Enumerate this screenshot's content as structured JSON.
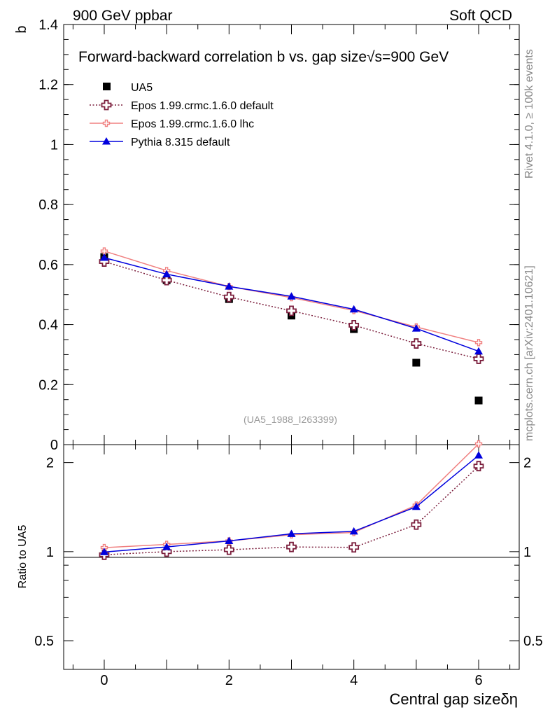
{
  "header": {
    "left": "900 GeV ppbar",
    "right": "Soft QCD"
  },
  "side_labels": {
    "rivet": "Rivet 4.1.0, ≥ 100k events",
    "mcplots": "mcplots.cern.ch [arXiv:2401.10621]"
  },
  "colors": {
    "ua5": "#000000",
    "epos_default": "#7b1e3c",
    "epos_lhc": "#f08080",
    "pythia": "#0000dd"
  },
  "chart_data": [
    {
      "type": "line",
      "title": "Forward-backward correlation b  vs. gap size",
      "title_suffix": "√s=900 GeV",
      "ylabel": "b",
      "xlabel": "Central gap sizeδη",
      "xlim": [
        -0.65,
        6.65
      ],
      "ylim": [
        0,
        1.4
      ],
      "yticks": [
        0,
        0.2,
        0.4,
        0.6,
        0.8,
        1,
        1.2,
        1.4
      ],
      "ytick_labels": [
        "0",
        "0.2",
        "0.4",
        "0.6",
        "0.8",
        "1",
        "1.2",
        "1.4"
      ],
      "xticks": [
        0,
        2,
        4,
        6
      ],
      "xtick_labels": [
        "0",
        "2",
        "4",
        "6"
      ],
      "watermark": "(UA5_1988_I263399)",
      "x": [
        0,
        1,
        2,
        3,
        4,
        5,
        6
      ],
      "series": [
        {
          "name": "UA5",
          "style": "data",
          "values": [
            0.625,
            0.548,
            0.485,
            0.43,
            0.385,
            0.273,
            0.147
          ]
        },
        {
          "name": "Epos 1.99.crmc.1.6.0 default",
          "style": "dotted-cross",
          "values": [
            0.61,
            0.548,
            0.492,
            0.446,
            0.398,
            0.337,
            0.286
          ]
        },
        {
          "name": "Epos 1.99.crmc.1.6.0 lhc",
          "style": "solid-smallcross",
          "values": [
            0.645,
            0.58,
            0.527,
            0.49,
            0.447,
            0.392,
            0.34
          ]
        },
        {
          "name": "Pythia 8.315 default",
          "style": "solid-triangle",
          "values": [
            0.623,
            0.568,
            0.527,
            0.494,
            0.451,
            0.387,
            0.311
          ]
        }
      ]
    },
    {
      "type": "line",
      "title": "",
      "ylabel": "Ratio to UA5",
      "xlabel": "Central gap sizeδη",
      "scale": "log",
      "ylim": [
        0.4,
        2.3
      ],
      "yticks": [
        0.5,
        1,
        2
      ],
      "ytick_labels": [
        "0.5",
        "1",
        "2"
      ],
      "x": [
        0,
        1,
        2,
        3,
        4,
        5,
        6
      ],
      "series": [
        {
          "name": "Epos 1.99.crmc.1.6.0 default",
          "style": "dotted-cross",
          "values": [
            0.976,
            1.0,
            1.015,
            1.037,
            1.034,
            1.234,
            1.946
          ]
        },
        {
          "name": "Epos 1.99.crmc.1.6.0 lhc",
          "style": "solid-smallcross",
          "values": [
            1.032,
            1.058,
            1.087,
            1.14,
            1.161,
            1.436,
            2.313
          ]
        },
        {
          "name": "Pythia 8.315 default",
          "style": "solid-triangle",
          "values": [
            0.997,
            1.037,
            1.087,
            1.149,
            1.171,
            1.418,
            2.116
          ]
        }
      ]
    }
  ]
}
